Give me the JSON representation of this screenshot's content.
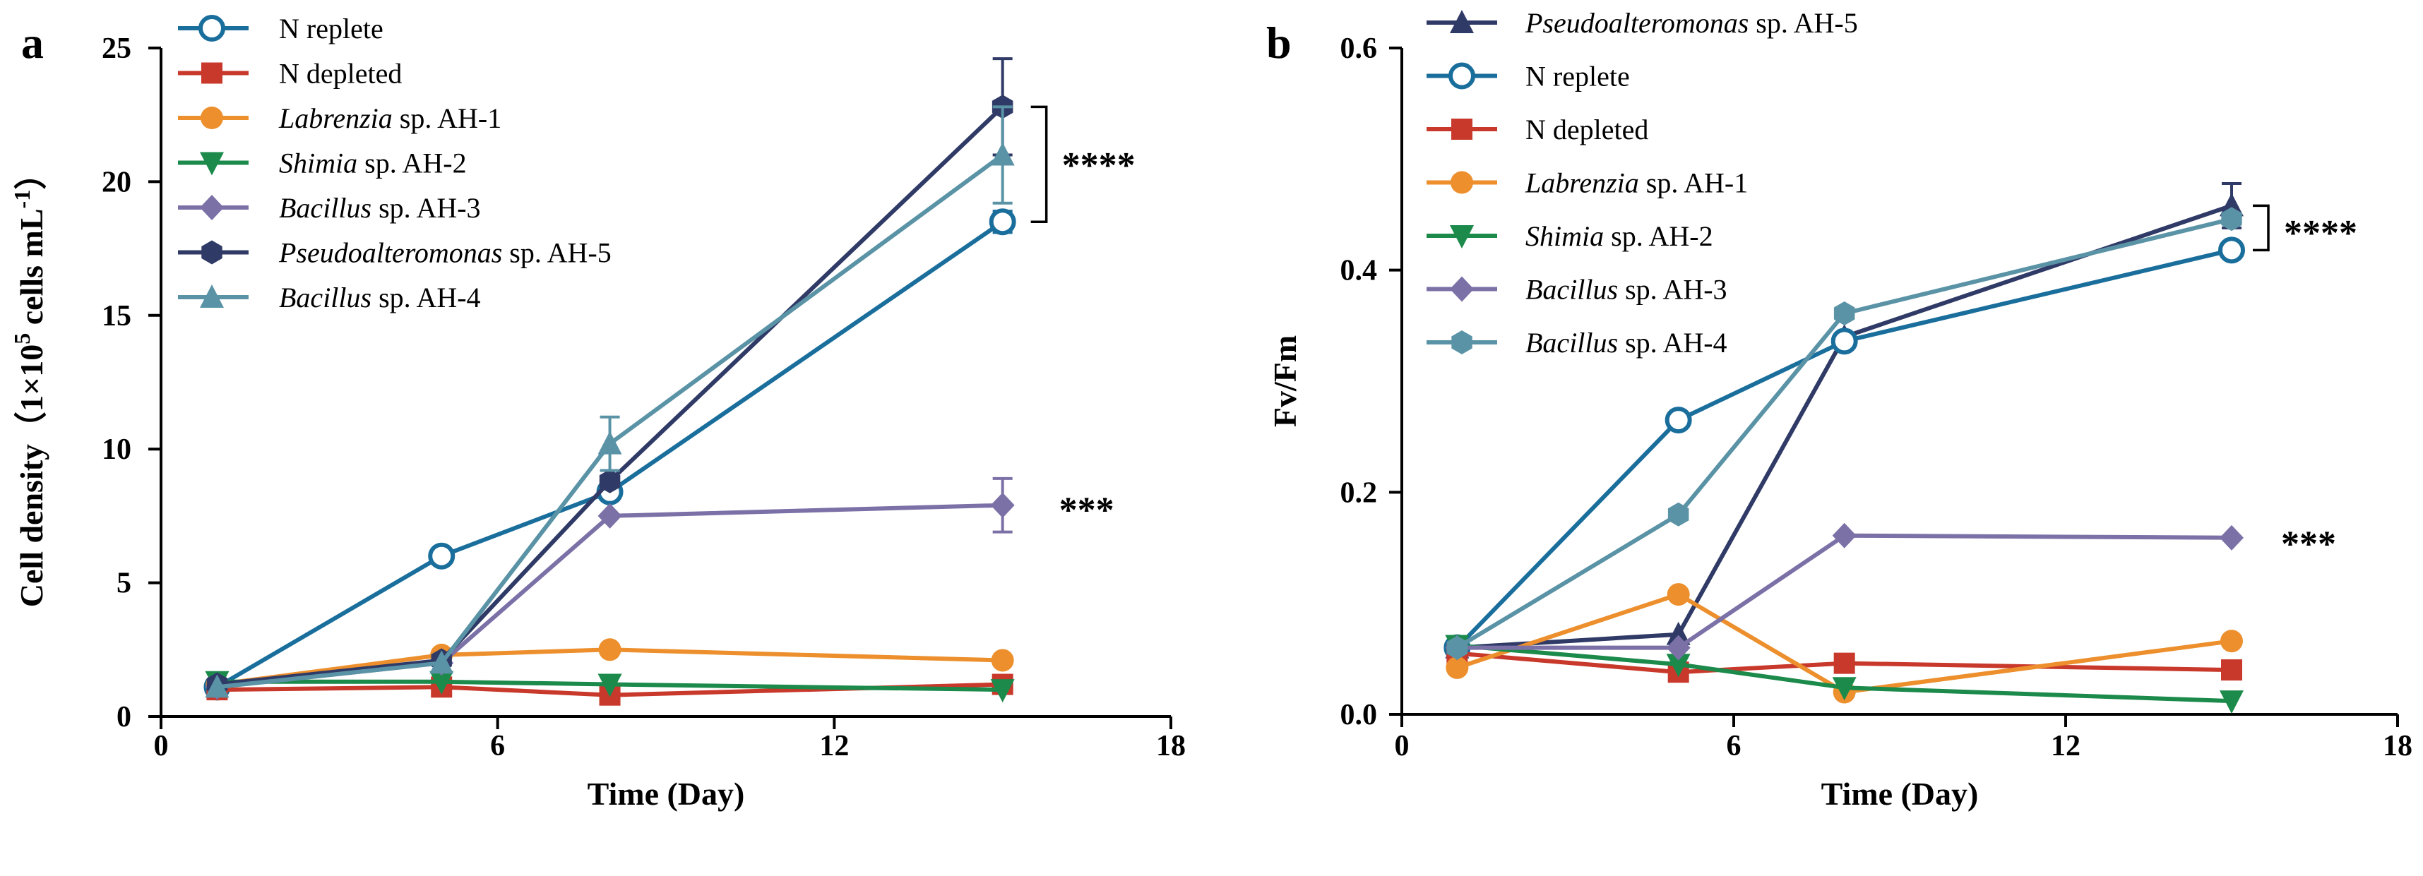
{
  "colors": {
    "n_replete": "#1a6e9c",
    "n_depleted": "#c8392b",
    "labrenzia": "#ec8f2c",
    "shimia": "#1b8a4b",
    "bacillus3": "#7b71a7",
    "pseudo": "#2f3a66",
    "bacillus4": "#5a93a6"
  },
  "chart_data": [
    {
      "type": "line",
      "panel_label": "a",
      "xlabel": "Time (Day)",
      "ylabel": "Cell density（1×10⁵ cells mL⁻¹）",
      "ylabel_parts": {
        "main": "Cell density（1×10",
        "exp1": "5",
        "mid": " cells mL",
        "exp2": "-1",
        "end": "）"
      },
      "xlim": [
        0,
        18
      ],
      "ylim": [
        0,
        25
      ],
      "x_ticks": [
        0,
        6,
        12,
        18
      ],
      "y_ticks": [
        0,
        5,
        10,
        15,
        20,
        25
      ],
      "x": [
        1,
        5,
        8,
        15
      ],
      "series": [
        {
          "name": "N replete",
          "legend_parts": [
            {
              "t": "N replete",
              "i": false
            }
          ],
          "color_key": "n_replete",
          "marker": "circle-open",
          "values": [
            1.1,
            6.0,
            8.4,
            18.5
          ],
          "err": [
            0,
            0,
            0.3,
            0.4
          ]
        },
        {
          "name": "N depleted",
          "legend_parts": [
            {
              "t": "N depleted",
              "i": false
            }
          ],
          "color_key": "n_depleted",
          "marker": "square",
          "values": [
            1.0,
            1.1,
            0.8,
            1.2
          ],
          "err": [
            0,
            0,
            0,
            0
          ]
        },
        {
          "name": "Labrenzia sp. AH-1",
          "legend_parts": [
            {
              "t": "Labrenzia",
              "i": true
            },
            {
              "t": " sp. AH-1",
              "i": false
            }
          ],
          "color_key": "labrenzia",
          "marker": "circle",
          "values": [
            1.2,
            2.3,
            2.5,
            2.1
          ],
          "err": [
            0,
            0,
            0,
            0
          ]
        },
        {
          "name": "Shimia sp. AH-2",
          "legend_parts": [
            {
              "t": "Shimia",
              "i": true
            },
            {
              "t": " sp. AH-2",
              "i": false
            }
          ],
          "color_key": "shimia",
          "marker": "triangle-down",
          "values": [
            1.3,
            1.3,
            1.2,
            1.0
          ],
          "err": [
            0,
            0,
            0,
            0
          ]
        },
        {
          "name": "Bacillus sp. AH-3",
          "legend_parts": [
            {
              "t": "Bacillus",
              "i": true
            },
            {
              "t": " sp. AH-3",
              "i": false
            }
          ],
          "color_key": "bacillus3",
          "marker": "diamond",
          "values": [
            1.1,
            2.0,
            7.5,
            7.9
          ],
          "err": [
            0,
            0,
            0,
            1.0
          ]
        },
        {
          "name": "Pseudoalteromonas sp. AH-5",
          "legend_parts": [
            {
              "t": "Pseudoalteromonas",
              "i": true
            },
            {
              "t": " sp. AH-5",
              "i": false
            }
          ],
          "color_key": "pseudo",
          "marker": "hexagon",
          "values": [
            1.2,
            2.1,
            8.8,
            22.8
          ],
          "err": [
            0,
            0,
            0,
            1.8
          ]
        },
        {
          "name": "Bacillus sp. AH-4",
          "legend_parts": [
            {
              "t": "Bacillus",
              "i": true
            },
            {
              "t": " sp.  AH-4",
              "i": false
            }
          ],
          "color_key": "bacillus4",
          "marker": "triangle-up",
          "values": [
            1.1,
            2.0,
            10.2,
            21.0
          ],
          "err": [
            0,
            0,
            1.0,
            1.8
          ]
        }
      ],
      "annotations": [
        {
          "text": "****",
          "bracket_y": [
            18.5,
            22.8
          ],
          "label_y": 20.8
        },
        {
          "text": "***",
          "label_y": 7.9
        }
      ]
    },
    {
      "type": "line",
      "panel_label": "b",
      "xlabel": "Time (Day)",
      "ylabel": "Fv/Fm",
      "xlim": [
        0,
        18
      ],
      "ylim": [
        0,
        0.6
      ],
      "x_ticks": [
        0,
        6,
        12,
        18
      ],
      "y_ticks": [
        0.0,
        0.2,
        0.4,
        0.6
      ],
      "y_tick_labels": [
        "0.0",
        "0.2",
        "0.4",
        "0.6"
      ],
      "x": [
        1,
        5,
        8,
        15
      ],
      "series": [
        {
          "name": "Pseudoalteromonas sp. AH-5",
          "legend_parts": [
            {
              "t": "Pseudoalteromonas",
              "i": true
            },
            {
              "t": " sp. AH-5",
              "i": false
            }
          ],
          "color_key": "pseudo",
          "marker": "triangle-up",
          "values": [
            0.06,
            0.072,
            0.34,
            0.458
          ],
          "err": [
            0,
            0,
            0,
            0.02
          ]
        },
        {
          "name": "N replete",
          "legend_parts": [
            {
              "t": "N replete",
              "i": false
            }
          ],
          "color_key": "n_replete",
          "marker": "circle-open",
          "values": [
            0.06,
            0.265,
            0.336,
            0.418
          ],
          "err": [
            0,
            0,
            0,
            0
          ]
        },
        {
          "name": "N depleted",
          "legend_parts": [
            {
              "t": "N depleted",
              "i": false
            }
          ],
          "color_key": "n_depleted",
          "marker": "square",
          "values": [
            0.055,
            0.038,
            0.046,
            0.04
          ],
          "err": [
            0,
            0,
            0,
            0
          ]
        },
        {
          "name": "Labrenzia sp. AH-1",
          "legend_parts": [
            {
              "t": "Labrenzia",
              "i": true
            },
            {
              "t": " sp. AH-1",
              "i": false
            }
          ],
          "color_key": "labrenzia",
          "marker": "circle",
          "values": [
            0.042,
            0.108,
            0.02,
            0.066
          ],
          "err": [
            0,
            0,
            0,
            0
          ]
        },
        {
          "name": "Shimia sp. AH-2",
          "legend_parts": [
            {
              "t": "Shimia",
              "i": true
            },
            {
              "t": " sp. AH-2",
              "i": false
            }
          ],
          "color_key": "shimia",
          "marker": "triangle-down",
          "values": [
            0.062,
            0.045,
            0.024,
            0.012
          ],
          "err": [
            0,
            0,
            0,
            0
          ]
        },
        {
          "name": "Bacillus sp. AH-3",
          "legend_parts": [
            {
              "t": "Bacillus",
              "i": true
            },
            {
              "t": " sp. AH-3",
              "i": false
            }
          ],
          "color_key": "bacillus3",
          "marker": "diamond",
          "values": [
            0.06,
            0.06,
            0.161,
            0.159
          ],
          "err": [
            0,
            0,
            0,
            0
          ]
        },
        {
          "name": "Bacillus sp. AH-4",
          "legend_parts": [
            {
              "t": "Bacillus",
              "i": true
            },
            {
              "t": " sp. AH-4",
              "i": false
            }
          ],
          "color_key": "bacillus4",
          "marker": "hexagon",
          "values": [
            0.06,
            0.18,
            0.361,
            0.446
          ],
          "err": [
            0,
            0,
            0,
            0
          ]
        }
      ],
      "annotations": [
        {
          "text": "****",
          "bracket_y": [
            0.418,
            0.458
          ],
          "label_y": 0.438
        },
        {
          "text": "***",
          "label_y": 0.158
        }
      ]
    }
  ]
}
